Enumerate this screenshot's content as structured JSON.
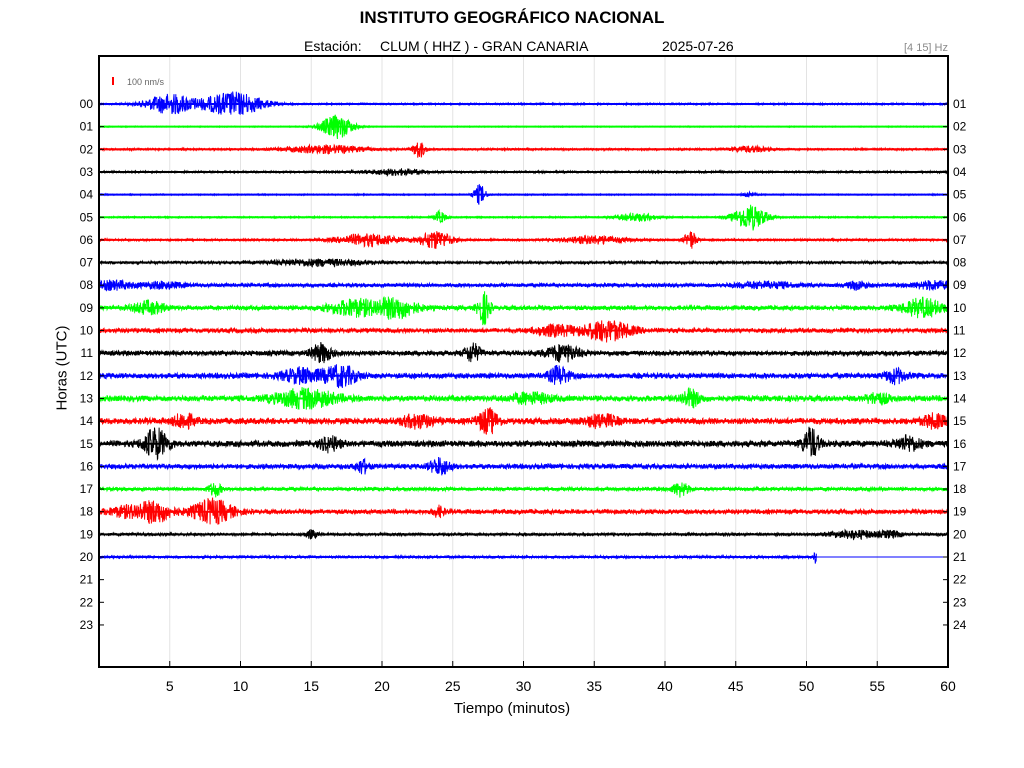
{
  "header": {
    "title": "INSTITUTO GEOGRÁFICO NACIONAL",
    "station_label": "Estación:",
    "station": "CLUM ( HHZ ) - GRAN CANARIA",
    "date": "2025-07-26",
    "band": "[4 15] Hz"
  },
  "chart_data": {
    "type": "line",
    "xlabel": "Tiempo (minutos)",
    "ylabel": "Horas (UTC)",
    "xlim": [
      0,
      60
    ],
    "x_ticks": [
      5,
      10,
      15,
      20,
      25,
      30,
      35,
      40,
      45,
      50,
      55,
      60
    ],
    "left_tick_labels": [
      "00",
      "01",
      "02",
      "03",
      "04",
      "05",
      "06",
      "07",
      "08",
      "09",
      "10",
      "11",
      "12",
      "13",
      "14",
      "15",
      "16",
      "17",
      "18",
      "19",
      "20",
      "21",
      "22",
      "23"
    ],
    "right_tick_labels": [
      "01",
      "02",
      "03",
      "04",
      "05",
      "06",
      "07",
      "08",
      "09",
      "10",
      "11",
      "12",
      "13",
      "14",
      "15",
      "16",
      "17",
      "18",
      "19",
      "20",
      "21",
      "22",
      "23",
      "24"
    ],
    "grid": true,
    "scale_bar_label": "100 nm/s",
    "colors": [
      "#0000ff",
      "#00ff00",
      "#ff0000",
      "#000000"
    ],
    "traces": [
      {
        "hour": "00",
        "color": "#0000ff",
        "noise": 0.8,
        "end_minute": 60,
        "events": [
          [
            5.0,
            10,
            1.2
          ],
          [
            9.5,
            12,
            1.5
          ]
        ]
      },
      {
        "hour": "01",
        "color": "#00ff00",
        "noise": 0.5,
        "end_minute": 60,
        "events": [
          [
            16.8,
            12,
            0.8
          ]
        ]
      },
      {
        "hour": "02",
        "color": "#ff0000",
        "noise": 0.9,
        "end_minute": 60,
        "events": [
          [
            16.0,
            4,
            2.0
          ],
          [
            22.6,
            9,
            0.3
          ],
          [
            46.0,
            3,
            1.0
          ]
        ]
      },
      {
        "hour": "03",
        "color": "#000000",
        "noise": 0.9,
        "end_minute": 60,
        "events": [
          [
            21.0,
            3,
            1.5
          ]
        ]
      },
      {
        "hour": "04",
        "color": "#0000ff",
        "noise": 0.6,
        "end_minute": 60,
        "events": [
          [
            26.9,
            10,
            0.3
          ],
          [
            45.9,
            3,
            0.3
          ]
        ]
      },
      {
        "hour": "05",
        "color": "#00ff00",
        "noise": 0.7,
        "end_minute": 60,
        "events": [
          [
            24.1,
            6,
            0.3
          ],
          [
            38.0,
            4,
            1.0
          ],
          [
            46.0,
            13,
            0.8
          ]
        ]
      },
      {
        "hour": "06",
        "color": "#ff0000",
        "noise": 1.0,
        "end_minute": 60,
        "events": [
          [
            19.0,
            6,
            1.5
          ],
          [
            23.8,
            9,
            0.8
          ],
          [
            35.0,
            4,
            1.5
          ],
          [
            41.8,
            9,
            0.3
          ]
        ]
      },
      {
        "hour": "07",
        "color": "#000000",
        "noise": 1.3,
        "end_minute": 60,
        "events": [
          [
            15.5,
            3,
            2.5
          ]
        ]
      },
      {
        "hour": "08",
        "color": "#0000ff",
        "noise": 1.8,
        "end_minute": 60,
        "events": [
          [
            1.0,
            4,
            1.0
          ],
          [
            4.5,
            3,
            1.0
          ],
          [
            47.0,
            3,
            1.5
          ],
          [
            53.6,
            4,
            0.5
          ],
          [
            59.0,
            4,
            1.0
          ]
        ]
      },
      {
        "hour": "09",
        "color": "#00ff00",
        "noise": 2.2,
        "end_minute": 60,
        "events": [
          [
            3.5,
            6,
            0.8
          ],
          [
            18.0,
            8,
            1.2
          ],
          [
            21.0,
            10,
            1.0
          ],
          [
            27.2,
            16,
            0.3
          ],
          [
            58.2,
            9,
            1.0
          ]
        ]
      },
      {
        "hour": "10",
        "color": "#ff0000",
        "noise": 2.2,
        "end_minute": 60,
        "events": [
          [
            32.2,
            5,
            1.0
          ],
          [
            35.9,
            10,
            1.2
          ]
        ]
      },
      {
        "hour": "11",
        "color": "#000000",
        "noise": 2.4,
        "end_minute": 60,
        "events": [
          [
            15.7,
            9,
            0.5
          ],
          [
            26.4,
            9,
            0.4
          ],
          [
            32.8,
            8,
            0.8
          ]
        ]
      },
      {
        "hour": "12",
        "color": "#0000ff",
        "noise": 2.6,
        "end_minute": 60,
        "events": [
          [
            14.3,
            7,
            1.0
          ],
          [
            17.1,
            10,
            0.8
          ],
          [
            32.5,
            9,
            0.5
          ],
          [
            56.3,
            7,
            0.5
          ]
        ]
      },
      {
        "hour": "13",
        "color": "#00ff00",
        "noise": 2.8,
        "end_minute": 60,
        "events": [
          [
            14.6,
            9,
            1.5
          ],
          [
            30.5,
            5,
            1.0
          ],
          [
            41.8,
            8,
            0.5
          ],
          [
            55.0,
            5,
            0.6
          ]
        ]
      },
      {
        "hour": "14",
        "color": "#ff0000",
        "noise": 3.0,
        "end_minute": 60,
        "events": [
          [
            6.0,
            7,
            0.5
          ],
          [
            22.5,
            6,
            0.8
          ],
          [
            27.5,
            12,
            0.5
          ],
          [
            35.5,
            6,
            0.8
          ],
          [
            59.0,
            6,
            0.6
          ]
        ]
      },
      {
        "hour": "15",
        "color": "#000000",
        "noise": 3.0,
        "end_minute": 60,
        "events": [
          [
            4.0,
            15,
            0.6
          ],
          [
            16.3,
            7,
            0.5
          ],
          [
            50.3,
            15,
            0.4
          ],
          [
            57.2,
            7,
            0.6
          ]
        ]
      },
      {
        "hour": "16",
        "color": "#0000ff",
        "noise": 2.4,
        "end_minute": 60,
        "events": [
          [
            18.6,
            7,
            0.3
          ],
          [
            24.1,
            8,
            0.5
          ]
        ]
      },
      {
        "hour": "17",
        "color": "#00ff00",
        "noise": 1.8,
        "end_minute": 60,
        "events": [
          [
            8.2,
            7,
            0.3
          ],
          [
            41.1,
            7,
            0.4
          ]
        ]
      },
      {
        "hour": "18",
        "color": "#ff0000",
        "noise": 2.2,
        "end_minute": 60,
        "events": [
          [
            2.0,
            5,
            1.0
          ],
          [
            4.0,
            10,
            0.8
          ],
          [
            8.0,
            12,
            1.0
          ],
          [
            24.0,
            5,
            0.3
          ]
        ]
      },
      {
        "hour": "19",
        "color": "#000000",
        "noise": 1.3,
        "end_minute": 60,
        "events": [
          [
            15.0,
            4,
            0.3
          ],
          [
            53.4,
            4,
            1.2
          ],
          [
            56.0,
            3,
            0.5
          ]
        ]
      },
      {
        "hour": "20",
        "color": "#0000ff",
        "noise": 1.2,
        "end_minute": 50.7,
        "events": [
          [
            50.7,
            10,
            0.1
          ]
        ]
      }
    ]
  }
}
